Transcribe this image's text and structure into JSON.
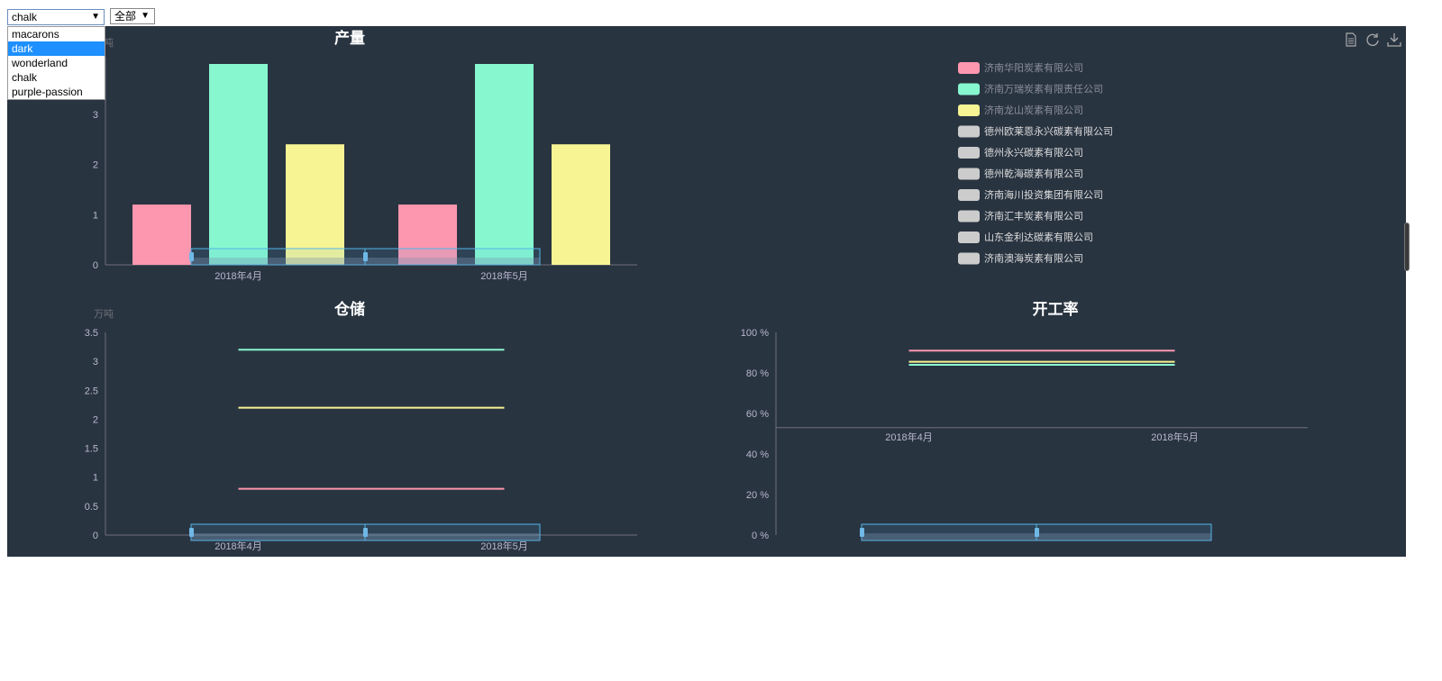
{
  "controls": {
    "theme_selected": "chalk",
    "theme_options": [
      "macarons",
      "dark",
      "wonderland",
      "chalk",
      "purple-passion"
    ],
    "theme_highlighted": "dark",
    "range_selected": "全部"
  },
  "colors": {
    "background": "#293441",
    "series": [
      "#fc97af",
      "#87f7cf",
      "#f7f494",
      "#72ccff",
      "#f7c5a0",
      "#d4a4eb",
      "#d2f5a6",
      "#76f2f2",
      "#c1c1c1",
      "#b9b8ce"
    ],
    "legend_inactive": "#cccccc",
    "datazoom_border": "#52b6e8"
  },
  "companies": [
    "济南华阳炭素有限公司",
    "济南万瑞炭素有限责任公司",
    "济南龙山炭素有限公司",
    "德州欧莱恩永兴碳素有限公司",
    "德州永兴碳素有限公司",
    "德州乾海碳素有限公司",
    "济南海川投资集团有限公司",
    "济南汇丰炭素有限公司",
    "山东金利达碳素有限公司",
    "济南澳海炭素有限公司"
  ],
  "legend_active_count": 3,
  "chart_data": [
    {
      "type": "bar",
      "title": "产量",
      "ylabel": "万吨",
      "categories": [
        "2018年4月",
        "2018年5月"
      ],
      "ylim": [
        0,
        4
      ],
      "yticks": [
        "0",
        "1",
        "2",
        "3"
      ],
      "series": [
        {
          "name": "济南华阳炭素有限公司",
          "values": [
            1.2,
            1.2
          ]
        },
        {
          "name": "济南万瑞炭素有限责任公司",
          "values": [
            4.0,
            4.0
          ]
        },
        {
          "name": "济南龙山炭素有限公司",
          "values": [
            2.4,
            2.4
          ]
        }
      ]
    },
    {
      "type": "line",
      "title": "仓储",
      "ylabel": "万吨",
      "categories": [
        "2018年4月",
        "2018年5月"
      ],
      "ylim": [
        0,
        3.5
      ],
      "yticks": [
        "0",
        "0.5",
        "1",
        "1.5",
        "2",
        "2.5",
        "3",
        "3.5"
      ],
      "series": [
        {
          "name": "济南华阳炭素有限公司",
          "values": [
            0.8,
            0.8
          ]
        },
        {
          "name": "济南万瑞炭素有限责任公司",
          "values": [
            3.2,
            3.2
          ]
        },
        {
          "name": "济南龙山炭素有限公司",
          "values": [
            2.2,
            2.2
          ]
        }
      ]
    },
    {
      "type": "line",
      "title": "开工率",
      "categories": [
        "2018年4月",
        "2018年5月"
      ],
      "ylim": [
        0,
        100
      ],
      "yticks": [
        "0 %",
        "20 %",
        "40 %",
        "60 %",
        "80 %",
        "100 %"
      ],
      "series": [
        {
          "name": "济南华阳炭素有限公司",
          "values": [
            91,
            91
          ]
        },
        {
          "name": "济南万瑞炭素有限责任公司",
          "values": [
            84,
            84
          ]
        },
        {
          "name": "济南龙山炭素有限公司",
          "values": [
            85.5,
            85.5
          ]
        }
      ]
    }
  ]
}
